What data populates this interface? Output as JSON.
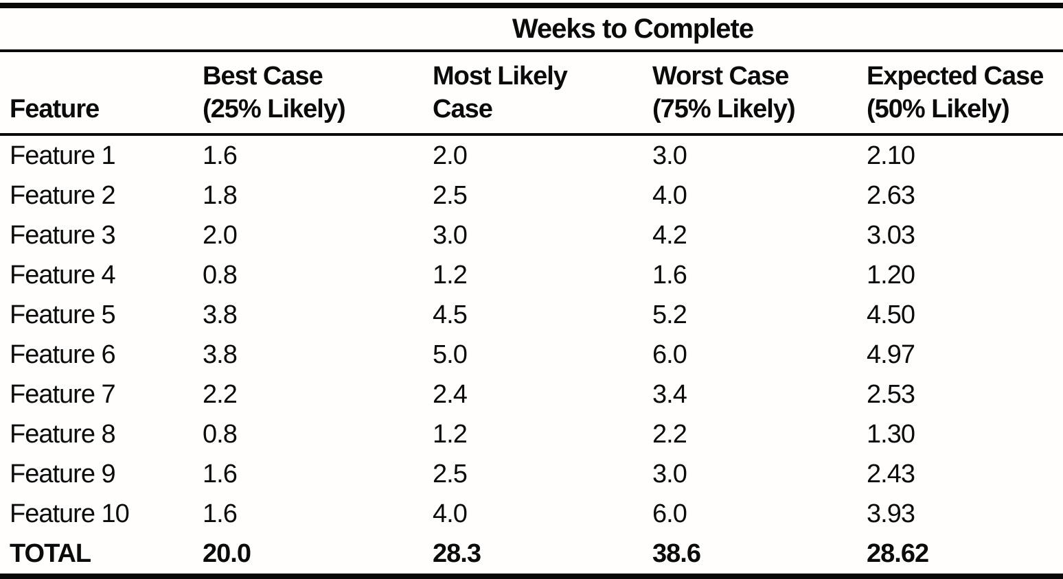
{
  "table": {
    "spanner": "Weeks to Complete",
    "columns": [
      {
        "label": "Feature",
        "sub": ""
      },
      {
        "label": "Best Case",
        "sub": "(25% Likely)"
      },
      {
        "label": "Most Likely",
        "sub": "Case"
      },
      {
        "label": "Worst Case",
        "sub": "(75% Likely)"
      },
      {
        "label": "Expected Case",
        "sub": "(50% Likely)"
      }
    ],
    "rows": [
      {
        "feature": "Feature 1",
        "best": "1.6",
        "most_likely": "2.0",
        "worst": "3.0",
        "expected": "2.10"
      },
      {
        "feature": "Feature 2",
        "best": "1.8",
        "most_likely": "2.5",
        "worst": "4.0",
        "expected": "2.63"
      },
      {
        "feature": "Feature 3",
        "best": "2.0",
        "most_likely": "3.0",
        "worst": "4.2",
        "expected": "3.03"
      },
      {
        "feature": "Feature 4",
        "best": "0.8",
        "most_likely": "1.2",
        "worst": "1.6",
        "expected": "1.20"
      },
      {
        "feature": "Feature 5",
        "best": "3.8",
        "most_likely": "4.5",
        "worst": "5.2",
        "expected": "4.50"
      },
      {
        "feature": "Feature 6",
        "best": "3.8",
        "most_likely": "5.0",
        "worst": "6.0",
        "expected": "4.97"
      },
      {
        "feature": "Feature 7",
        "best": "2.2",
        "most_likely": "2.4",
        "worst": "3.4",
        "expected": "2.53"
      },
      {
        "feature": "Feature 8",
        "best": "0.8",
        "most_likely": "1.2",
        "worst": "2.2",
        "expected": "1.30"
      },
      {
        "feature": "Feature 9",
        "best": "1.6",
        "most_likely": "2.5",
        "worst": "3.0",
        "expected": "2.43"
      },
      {
        "feature": "Feature 10",
        "best": "1.6",
        "most_likely": "4.0",
        "worst": "6.0",
        "expected": "3.93"
      }
    ],
    "total": {
      "feature": "TOTAL",
      "best": "20.0",
      "most_likely": "28.3",
      "worst": "38.6",
      "expected": "28.62"
    }
  },
  "colors": {
    "ink": "#090909",
    "paper": "#fffefd"
  },
  "chart_data": {
    "type": "table",
    "title": "Weeks to Complete",
    "categories": [
      "Feature 1",
      "Feature 2",
      "Feature 3",
      "Feature 4",
      "Feature 5",
      "Feature 6",
      "Feature 7",
      "Feature 8",
      "Feature 9",
      "Feature 10",
      "TOTAL"
    ],
    "series": [
      {
        "name": "Best Case (25% Likely)",
        "values": [
          1.6,
          1.8,
          2.0,
          0.8,
          3.8,
          3.8,
          2.2,
          0.8,
          1.6,
          1.6,
          20.0
        ]
      },
      {
        "name": "Most Likely Case",
        "values": [
          2.0,
          2.5,
          3.0,
          1.2,
          4.5,
          5.0,
          2.4,
          1.2,
          2.5,
          4.0,
          28.3
        ]
      },
      {
        "name": "Worst Case (75% Likely)",
        "values": [
          3.0,
          4.0,
          4.2,
          1.6,
          5.2,
          6.0,
          3.4,
          2.2,
          3.0,
          6.0,
          38.6
        ]
      },
      {
        "name": "Expected Case (50% Likely)",
        "values": [
          2.1,
          2.63,
          3.03,
          1.2,
          4.5,
          4.97,
          2.53,
          1.3,
          2.43,
          3.93,
          28.62
        ]
      }
    ]
  }
}
